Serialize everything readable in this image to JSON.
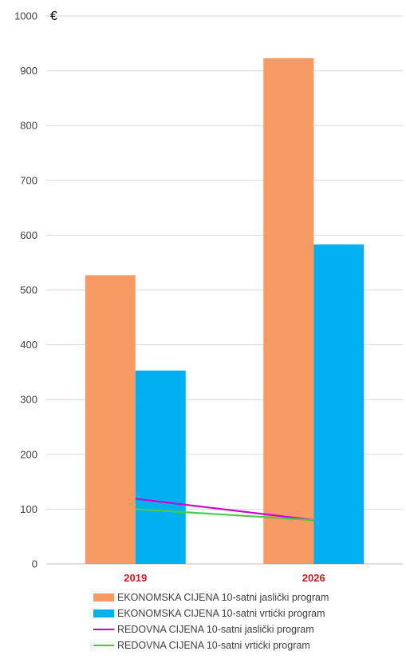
{
  "chart_data": {
    "type": "bar",
    "unit_label": "€",
    "categories": [
      "2019",
      "2026"
    ],
    "ylim": [
      0,
      1000
    ],
    "yticks": [
      "0",
      "100",
      "200",
      "300",
      "400",
      "500",
      "600",
      "700",
      "800",
      "900",
      "1000"
    ],
    "grid": true,
    "legend_position": "bottom",
    "series": [
      {
        "name": "EKONOMSKA CIJENA 10-satni jaslički program",
        "kind": "bar",
        "color": "#f79a64",
        "values": [
          527,
          923
        ]
      },
      {
        "name": "EKONOMSKA CIJENA 10-satni vrtićki program",
        "kind": "bar",
        "color": "#00b0f0",
        "values": [
          353,
          583
        ]
      },
      {
        "name": "REDOVNA CIJENA 10-satni jaslički program",
        "kind": "line",
        "color": "#cc00cc",
        "values": [
          119,
          80
        ]
      },
      {
        "name": "REDOVNA CIJENA 10-satni vrtićki program",
        "kind": "line",
        "color": "#4cc94c",
        "values": [
          100,
          80
        ]
      }
    ]
  }
}
